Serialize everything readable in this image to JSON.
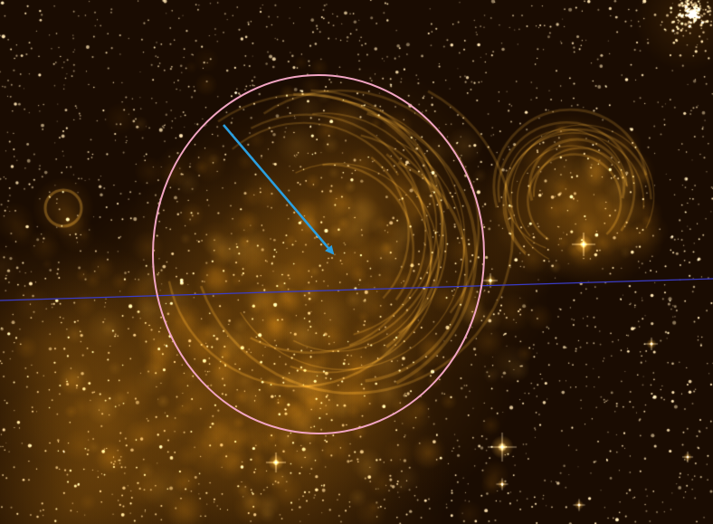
{
  "image": {
    "subject": "nebula-star-field",
    "palette": {
      "background": "#1a0c02",
      "nebula_glow": "#e89a18",
      "nebula_bright": "#ffc244",
      "star": "#fff1c4"
    }
  },
  "annotations": {
    "circle_color": "#f2a5c4",
    "arrow_color": "#2a9fe0",
    "line_color": "#3a3cc8"
  }
}
